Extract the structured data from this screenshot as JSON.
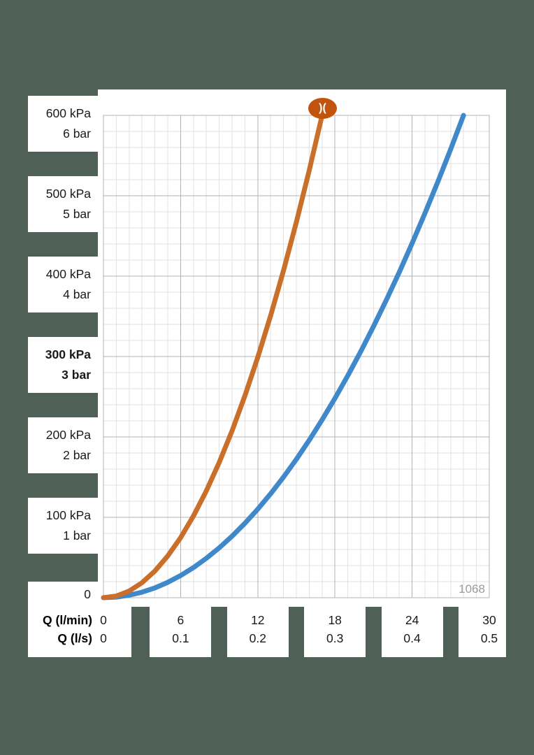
{
  "page": {
    "background": "#4f6156",
    "figure_number": "1068"
  },
  "chart_data": {
    "type": "line",
    "xlabel_primary": "Q (l/min)",
    "xlabel_secondary": "Q (l/s)",
    "xlim": [
      0,
      30
    ],
    "ylim": [
      0,
      600
    ],
    "grid": {
      "minor_x_step": 1,
      "minor_y_step": 20,
      "major_x_step": 6,
      "major_y_step": 100,
      "minor_color": "#e2e2e2",
      "major_color": "#b3b3b3"
    },
    "x_tick_values": [
      0,
      6,
      12,
      18,
      24,
      30
    ],
    "x_ticks_lmin": [
      "0",
      "6",
      "12",
      "18",
      "24",
      "30"
    ],
    "x_ticks_ls": [
      "0",
      "0.1",
      "0.2",
      "0.3",
      "0.4",
      "0.5"
    ],
    "y_labels": [
      {
        "kpa": "600 kPa",
        "bar": "6 bar",
        "value": 600,
        "bold": false
      },
      {
        "kpa": "500 kPa",
        "bar": "5 bar",
        "value": 500,
        "bold": false
      },
      {
        "kpa": "400 kPa",
        "bar": "4 bar",
        "value": 400,
        "bold": false
      },
      {
        "kpa": "300 kPa",
        "bar": "3 bar",
        "value": 300,
        "bold": true
      },
      {
        "kpa": "200 kPa",
        "bar": "2 bar",
        "value": 200,
        "bold": false
      },
      {
        "kpa": "100 kPa",
        "bar": "1 bar",
        "value": 100,
        "bold": false
      },
      {
        "kpa": "0",
        "bar": "",
        "value": 0,
        "bold": false
      }
    ],
    "series": [
      {
        "name": "blue-curve",
        "color": "#3f88c9",
        "x": [
          0,
          1,
          2,
          3,
          4,
          5,
          6,
          7,
          8,
          9,
          10,
          11,
          12,
          13,
          14,
          15,
          16,
          17,
          18,
          19,
          20,
          21,
          22,
          23,
          24,
          25,
          26,
          27,
          28
        ],
        "y": [
          0,
          0.8,
          3.1,
          6.9,
          12.2,
          19.1,
          27.6,
          37.5,
          49.0,
          62.0,
          76.5,
          92.6,
          110.2,
          129.3,
          150.0,
          172.2,
          195.9,
          221.2,
          248.0,
          276.3,
          306.1,
          337.5,
          370.4,
          404.8,
          440.8,
          478.3,
          517.3,
          557.9,
          600
        ]
      },
      {
        "name": "orange-curve",
        "color": "#c96f2a",
        "x": [
          0,
          1,
          2,
          3,
          4,
          5,
          6,
          7,
          8,
          9,
          10,
          11,
          12,
          13,
          14,
          15,
          16,
          17
        ],
        "y": [
          0,
          2.1,
          8.3,
          18.7,
          33.2,
          51.9,
          74.7,
          101.7,
          132.9,
          168.2,
          207.6,
          251.2,
          299.0,
          350.9,
          406.9,
          467.1,
          531.5,
          600
        ]
      }
    ],
    "logo": {
      "symbol": ")(",
      "color": "#c2530c"
    }
  }
}
